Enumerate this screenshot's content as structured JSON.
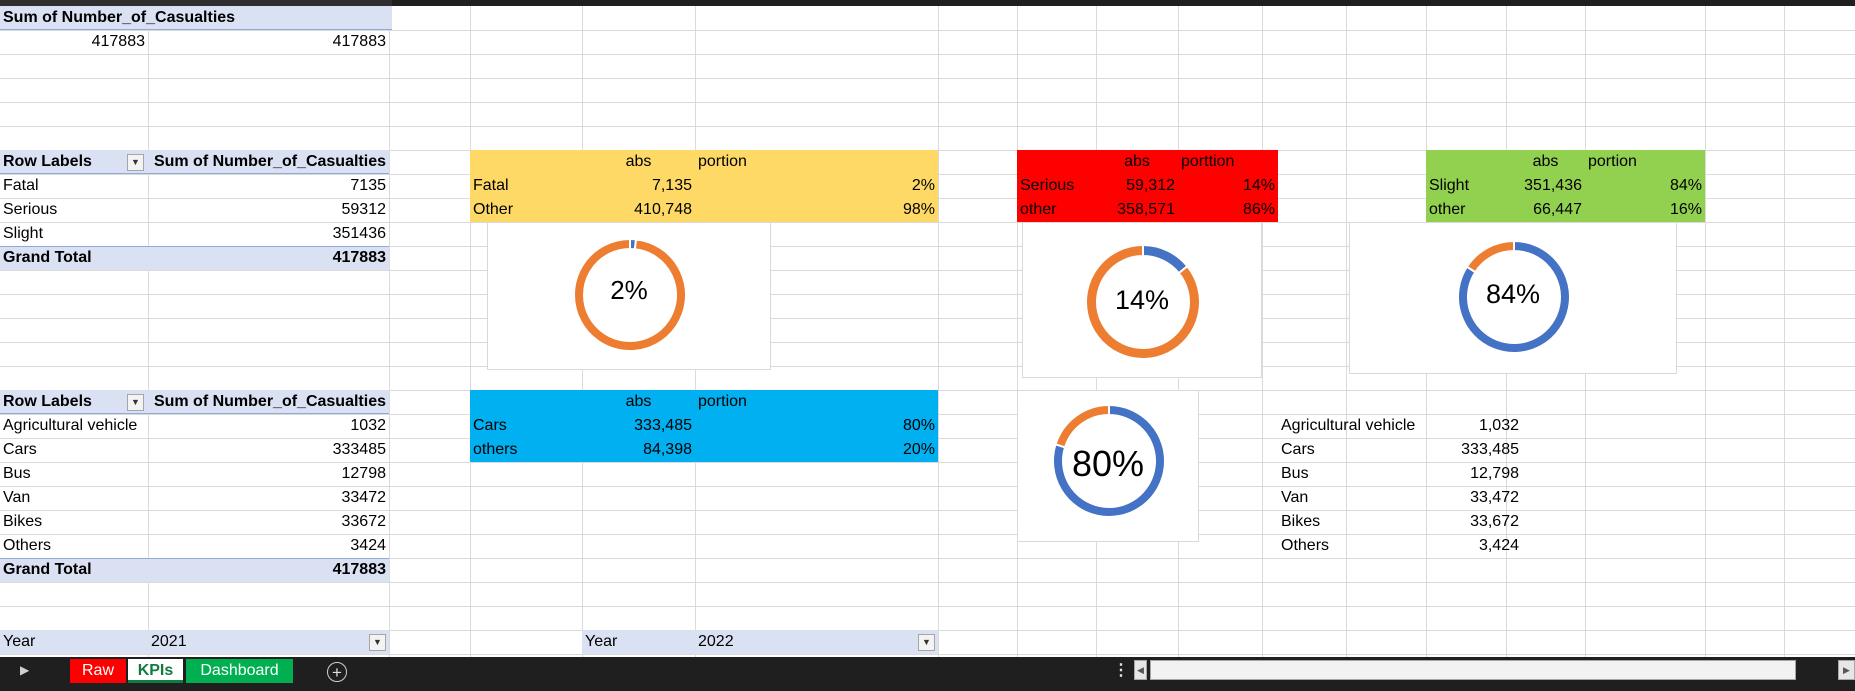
{
  "pivot_total": {
    "header": "Sum of Number_of_Casualties",
    "value_a": "417883",
    "value_b": "417883"
  },
  "pivot_severity": {
    "row_labels": "Row Labels",
    "value_header": "Sum of Number_of_Casualties",
    "rows": [
      {
        "label": "Fatal",
        "value": "7135"
      },
      {
        "label": "Serious",
        "value": "59312"
      },
      {
        "label": "Slight",
        "value": "351436"
      }
    ],
    "grand_total_label": "Grand Total",
    "grand_total_value": "417883"
  },
  "pivot_vehicle": {
    "row_labels": "Row Labels",
    "value_header": "Sum of Number_of_Casualties",
    "rows": [
      {
        "label": "Agricultural vehicle",
        "value": "1032"
      },
      {
        "label": "Cars",
        "value": "333485"
      },
      {
        "label": "Bus",
        "value": "12798"
      },
      {
        "label": "Van",
        "value": "33472"
      },
      {
        "label": "Bikes",
        "value": "33672"
      },
      {
        "label": "Others",
        "value": "3424"
      }
    ],
    "grand_total_label": "Grand Total",
    "grand_total_value": "417883"
  },
  "kpi_fatal": {
    "color": "#ffd966",
    "abs_header": "abs",
    "portion_header": "portion",
    "rows": [
      {
        "label": "Fatal",
        "abs": "7,135",
        "portion": "2%"
      },
      {
        "label": "Other",
        "abs": "410,748",
        "portion": "98%"
      }
    ]
  },
  "kpi_serious": {
    "color": "#ff0000",
    "abs_header": "abs",
    "portion_header": "porttion",
    "rows": [
      {
        "label": "Serious",
        "abs": "59,312",
        "portion": "14%"
      },
      {
        "label": "other",
        "abs": "358,571",
        "portion": "86%"
      }
    ]
  },
  "kpi_slight": {
    "color": "#92d050",
    "abs_header": "abs",
    "portion_header": "portion",
    "rows": [
      {
        "label": "Slight",
        "abs": "351,436",
        "portion": "84%"
      },
      {
        "label": "other",
        "abs": "66,447",
        "portion": "16%"
      }
    ]
  },
  "kpi_cars": {
    "color": "#00b0f0",
    "abs_header": "abs",
    "portion_header": "portion",
    "rows": [
      {
        "label": "Cars",
        "abs": "333,485",
        "portion": "80%"
      },
      {
        "label": "others",
        "abs": "84,398",
        "portion": "20%"
      }
    ]
  },
  "vehicle_list": [
    {
      "label": "Agricultural vehicle",
      "value": "1,032"
    },
    {
      "label": "Cars",
      "value": "333,485"
    },
    {
      "label": "Bus",
      "value": "12,798"
    },
    {
      "label": "Van",
      "value": "33,472"
    },
    {
      "label": "Bikes",
      "value": "33,672"
    },
    {
      "label": "Others",
      "value": "3,424"
    }
  ],
  "filters": [
    {
      "label": "Year",
      "value": "2021"
    },
    {
      "label": "Year",
      "value": "2022"
    }
  ],
  "chart_data": [
    {
      "type": "pie",
      "label": "2%",
      "values": [
        7135,
        410748
      ],
      "colors": [
        "#4472c4",
        "#ed7d31"
      ]
    },
    {
      "type": "pie",
      "label": "14%",
      "values": [
        59312,
        358571
      ],
      "colors": [
        "#4472c4",
        "#ed7d31"
      ]
    },
    {
      "type": "pie",
      "label": "84%",
      "values": [
        351436,
        66447
      ],
      "colors": [
        "#4472c4",
        "#ed7d31"
      ]
    },
    {
      "type": "pie",
      "label": "80%",
      "values": [
        333485,
        84398
      ],
      "colors": [
        "#4472c4",
        "#ed7d31"
      ]
    }
  ],
  "tabs": [
    {
      "label": "Raw",
      "color": "#ff0000",
      "active": false
    },
    {
      "label": "KPIs",
      "color": "#ffffff",
      "active": true
    },
    {
      "label": "Dashboard",
      "color": "#00b050",
      "active": false
    }
  ],
  "icons": {
    "filter": "filter-icon",
    "dropdown": "dropdown-arrow-icon",
    "add_sheet": "plus-circle-icon",
    "more": "vertical-ellipsis-icon"
  }
}
